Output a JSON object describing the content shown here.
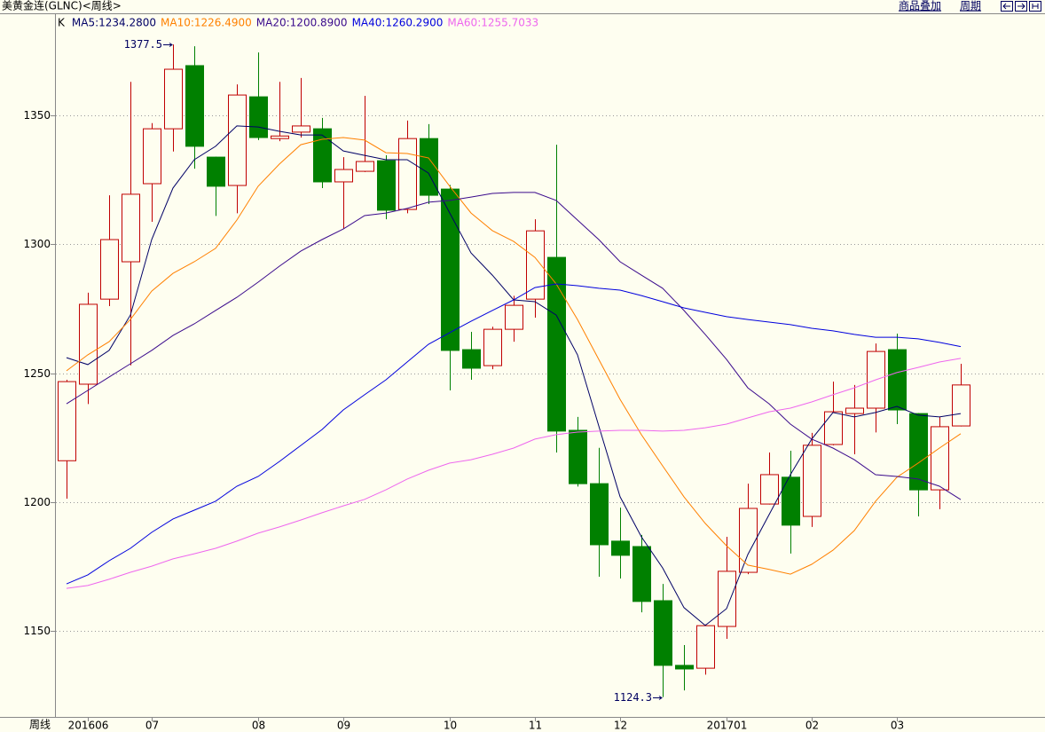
{
  "toolbar": [
    "商品叠加",
    "周期"
  ],
  "chart_data": {
    "type": "candlestick",
    "title": "美黄金连(GLNC)<周线>",
    "period_label": "周线",
    "legend_label": "K",
    "categories": [
      null,
      "201606",
      null,
      null,
      "07",
      null,
      null,
      null,
      null,
      "08",
      null,
      null,
      null,
      "09",
      null,
      null,
      null,
      null,
      "10",
      null,
      null,
      null,
      "11",
      null,
      null,
      null,
      "12",
      null,
      null,
      null,
      null,
      "201701",
      null,
      null,
      null,
      "02",
      null,
      null,
      null,
      "03",
      null,
      null,
      null
    ],
    "open": [
      1216,
      1245.7,
      1278.7,
      1293.2,
      1323.5,
      1344.8,
      1369.3,
      1333.8,
      1322.8,
      1357.2,
      1341,
      1343.5,
      1344.8,
      1324.2,
      1328.3,
      1332.4,
      1313.5,
      1341,
      1321.4,
      1259.1,
      1252.9,
      1267,
      1278.7,
      1294.9,
      1227.8,
      1207.1,
      1184.8,
      1182.7,
      1161.7,
      1136.6,
      1135.5,
      1151.7,
      1172.7,
      1199.2,
      1209.6,
      1194.4,
      1222.3,
      1234.3,
      1236.4,
      1259.1,
      1234.3,
      1204.7,
      1229.5
    ],
    "high": [
      1247.4,
      1281.2,
      1319,
      1363,
      1347,
      1377.5,
      1376.8,
      1334,
      1362,
      1374.4,
      1363,
      1364.5,
      1349,
      1333.8,
      1357.6,
      1334.5,
      1348,
      1346.6,
      1323,
      1266,
      1268,
      1280,
      1309.7,
      1338.6,
      1233,
      1221,
      1197.8,
      1187.2,
      1168.2,
      1144.5,
      1152.5,
      1186.5,
      1207.1,
      1219.2,
      1219.9,
      1226.8,
      1246.7,
      1245.4,
      1261.5,
      1265.3,
      1234.5,
      1233,
      1253.6
    ],
    "low": [
      1201.3,
      1238,
      1276,
      1253,
      1308.7,
      1336,
      1329.3,
      1311,
      1312,
      1340.4,
      1340,
      1341.4,
      1321.8,
      1306,
      1328,
      1309.7,
      1312,
      1315.6,
      1243.3,
      1247.4,
      1251.5,
      1262.2,
      1271.5,
      1219.2,
      1206,
      1171,
      1170.3,
      1157.2,
      1124.3,
      1126.9,
      1133,
      1146.9,
      1172,
      1199,
      1180,
      1190.3,
      1222,
      1218.5,
      1227,
      1230.2,
      1194.4,
      1197.2,
      1229.3
    ],
    "close": [
      1246.7,
      1276.7,
      1301.8,
      1319.4,
      1344.8,
      1367.9,
      1338,
      1322.5,
      1357.9,
      1341.4,
      1342,
      1345.9,
      1324.2,
      1329,
      1332.1,
      1313.2,
      1341,
      1319,
      1258.8,
      1251.9,
      1267,
      1276.3,
      1305.2,
      1227.5,
      1207.1,
      1183.4,
      1179.3,
      1161.4,
      1136.6,
      1135.2,
      1152,
      1173.1,
      1197.5,
      1210.6,
      1191,
      1222,
      1235,
      1236.4,
      1258.4,
      1235.7,
      1204.7,
      1229.2,
      1245.4
    ],
    "series": [
      {
        "name": "MA5:1234.2800",
        "color": "#000066",
        "values": [
          1256.0,
          1253.3,
          1258.8,
          1272.5,
          1301.8,
          1321.8,
          1332.8,
          1338.0,
          1345.9,
          1345.5,
          1343.8,
          1342.4,
          1342.4,
          1336.2,
          1334.5,
          1332.8,
          1332.8,
          1327.6,
          1312.1,
          1296.6,
          1288.0,
          1278.4,
          1277.7,
          1272.5,
          1257.1,
          1229.5,
          1202.0,
          1186.5,
          1174.4,
          1159.0,
          1152.1,
          1158.6,
          1179.6,
          1195.1,
          1210.6,
          1224.4,
          1234.7,
          1233.0,
          1234.7,
          1237.1,
          1233.7,
          1233.0,
          1234.3
        ]
      },
      {
        "name": "MA10:1226.4900",
        "color": "#ff8000",
        "values": [
          1250.9,
          1257.1,
          1262.2,
          1270.8,
          1281.8,
          1288.7,
          1293.2,
          1298.4,
          1309.4,
          1322.5,
          1331.1,
          1338.6,
          1340.7,
          1341.4,
          1340.4,
          1335.5,
          1335.2,
          1333.5,
          1322.5,
          1312.1,
          1305.3,
          1301.1,
          1294.9,
          1284.6,
          1270.8,
          1255.3,
          1239.8,
          1226.1,
          1214.0,
          1202.0,
          1191.7,
          1183.0,
          1175.5,
          1173.8,
          1172.0,
          1175.8,
          1181.3,
          1188.9,
          1200.3,
          1209.6,
          1215.1,
          1220.9,
          1226.5
        ]
      },
      {
        "name": "MA20:1200.8900",
        "color": "#3a0a8c",
        "values": [
          1238.1,
          1243.3,
          1248.5,
          1253.6,
          1258.8,
          1264.6,
          1269.1,
          1274.3,
          1279.4,
          1285.3,
          1291.5,
          1297.3,
          1301.8,
          1305.9,
          1311.1,
          1312.1,
          1313.9,
          1316.3,
          1317.0,
          1318.3,
          1319.7,
          1320.1,
          1320.1,
          1317.0,
          1309.4,
          1301.8,
          1293.2,
          1288.0,
          1282.9,
          1274.3,
          1265.0,
          1255.3,
          1244.3,
          1238.1,
          1230.2,
          1224.4,
          1220.9,
          1216.4,
          1210.6,
          1209.9,
          1208.9,
          1206.1,
          1200.9
        ]
      },
      {
        "name": "MA40:1260.2900",
        "color": "#0000dd",
        "values": [
          1168.2,
          1171.7,
          1177.2,
          1182.0,
          1188.2,
          1193.4,
          1196.8,
          1200.3,
          1206.1,
          1209.9,
          1215.7,
          1221.9,
          1228.1,
          1235.7,
          1241.6,
          1247.4,
          1254.3,
          1261.2,
          1265.7,
          1270.1,
          1274.3,
          1278.4,
          1283.2,
          1284.6,
          1283.9,
          1282.9,
          1282.2,
          1280.1,
          1277.7,
          1275.3,
          1273.6,
          1271.9,
          1270.8,
          1269.8,
          1268.8,
          1267.4,
          1266.4,
          1265.0,
          1263.9,
          1263.9,
          1263.3,
          1261.9,
          1260.3
        ]
      },
      {
        "name": "MA60:1255.7033",
        "color": "#ee66ee",
        "values": [
          1166.5,
          1167.6,
          1170.0,
          1172.7,
          1175.1,
          1177.9,
          1179.9,
          1182.0,
          1184.8,
          1187.9,
          1190.3,
          1193.0,
          1195.8,
          1198.5,
          1201.0,
          1204.7,
          1208.9,
          1212.3,
          1215.1,
          1216.4,
          1218.5,
          1220.9,
          1224.4,
          1226.1,
          1227.1,
          1227.5,
          1227.8,
          1227.8,
          1227.5,
          1227.8,
          1228.8,
          1230.2,
          1232.6,
          1235.0,
          1236.4,
          1238.8,
          1241.6,
          1244.3,
          1247.4,
          1250.2,
          1252.2,
          1254.3,
          1255.7
        ]
      }
    ],
    "up_color": "#c00000",
    "down_color": "#008000",
    "ylim": [
      1116.6,
      1389.6
    ],
    "yticks": [
      1150,
      1200,
      1250,
      1300,
      1350
    ],
    "grid": true
  }
}
